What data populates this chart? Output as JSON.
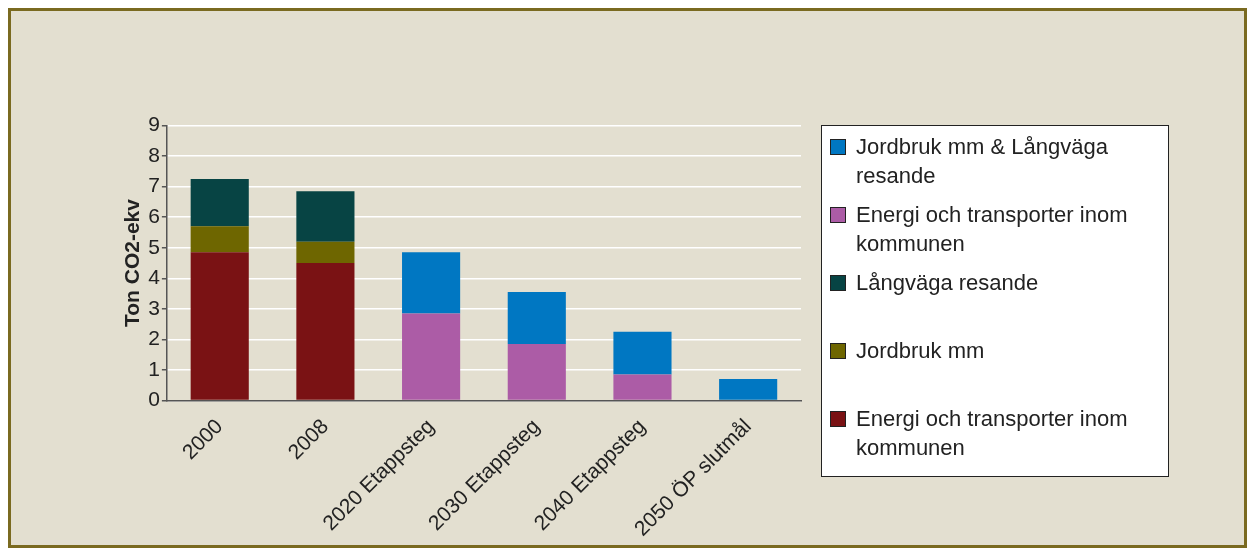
{
  "chart_data": {
    "type": "bar",
    "stacked": true,
    "ylabel": "Ton CO2-ekv",
    "categories": [
      "2000",
      "2008",
      "2020 Etappsteg",
      "2030 Etappsteg",
      "2040 Etappsteg",
      "2050 ÖP slutmål"
    ],
    "series": [
      {
        "name": "Energi och transporter inom kommunen",
        "color": "#7a1214",
        "values": [
          4.85,
          4.5,
          null,
          null,
          null,
          null
        ]
      },
      {
        "name": "Jordbruk mm",
        "color": "#6e6600",
        "values": [
          0.85,
          0.7,
          null,
          null,
          null,
          null
        ]
      },
      {
        "name": "Långväga resande",
        "color": "#074444",
        "values": [
          1.55,
          1.65,
          null,
          null,
          null,
          null
        ]
      },
      {
        "name": "Energi och transporter inom kommunen",
        "color": "#ac5ca6",
        "values": [
          null,
          null,
          2.85,
          1.85,
          0.85,
          null
        ]
      },
      {
        "name": "Jordbruk mm & Långväga resande",
        "color": "#0077c2",
        "values": [
          null,
          null,
          2.0,
          1.7,
          1.4,
          0.7
        ]
      }
    ],
    "ylim": [
      0,
      9
    ],
    "yticks": [
      0,
      1,
      2,
      3,
      4,
      5,
      6,
      7,
      8,
      9
    ],
    "grid": "y",
    "legend": "right"
  }
}
